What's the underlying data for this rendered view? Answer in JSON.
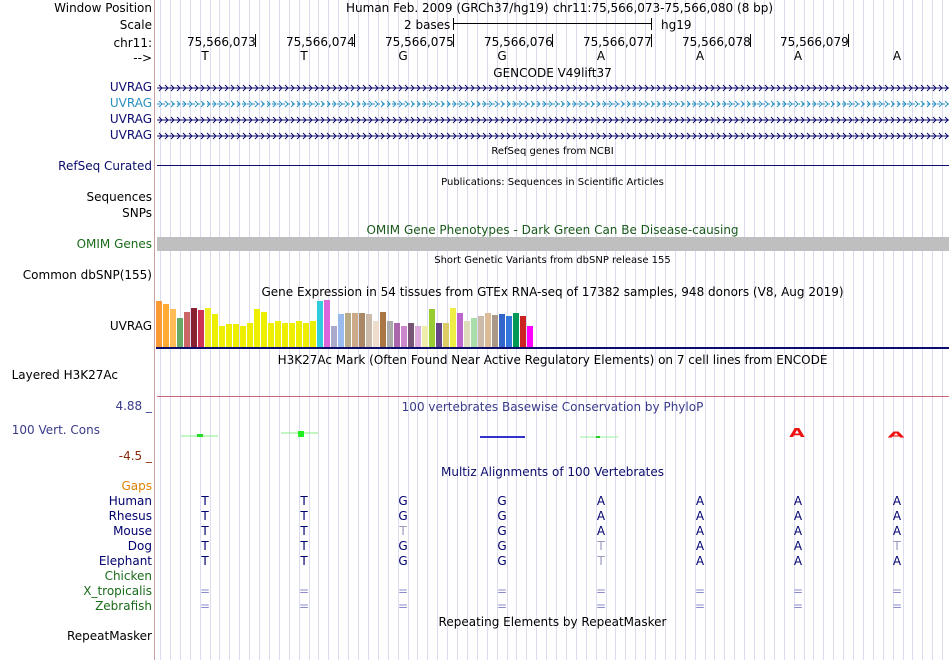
{
  "header": {
    "window_position_label": "Window Position",
    "scale_label": "Scale",
    "chrom_label": "chr11:",
    "strand_label": "-->",
    "assembly": "Human Feb. 2009 (GRCh37/hg19)",
    "position": "chr11:75,566,073-75,566,080 (8 bp)",
    "scale_text": "2 bases",
    "db": "hg19",
    "coordinates": [
      "75,566,073",
      "75,566,074",
      "75,566,075",
      "75,566,076",
      "75,566,077",
      "75,566,078",
      "75,566,079"
    ],
    "bases": [
      "T",
      "T",
      "G",
      "G",
      "A",
      "A",
      "A",
      "A"
    ]
  },
  "tracks": {
    "gencode": {
      "title": "GENCODE V49lift37",
      "genes": [
        {
          "name": "UVRAG",
          "color": "#0b0b6b"
        },
        {
          "name": "UVRAG",
          "color": "#2a8fc0"
        },
        {
          "name": "UVRAG",
          "color": "#0b0b6b"
        },
        {
          "name": "UVRAG",
          "color": "#0b0b6b"
        }
      ]
    },
    "refseq": {
      "title": "RefSeq genes from NCBI",
      "label": "RefSeq Curated"
    },
    "publications": {
      "title": "Publications: Sequences in Scientific Articles",
      "label1": "Sequences",
      "label2": "SNPs"
    },
    "omim": {
      "title": "OMIM Gene Phenotypes - Dark Green Can Be Disease-causing",
      "label": "OMIM Genes"
    },
    "dbsnp": {
      "title": "Short Genetic Variants from dbSNP release 155",
      "label": "Common dbSNP(155)"
    },
    "gtex": {
      "title": "Gene Expression in 54 tissues from GTEx RNA-seq of 17382 samples, 948 donors (V8, Aug 2019)",
      "label": "UVRAG",
      "bars": [
        {
          "v": 0.98,
          "c": "#ff9933"
        },
        {
          "v": 0.92,
          "c": "#ffaa33"
        },
        {
          "v": 0.8,
          "c": "#ffbb55"
        },
        {
          "v": 0.62,
          "c": "#66aa66"
        },
        {
          "v": 0.75,
          "c": "#cc6666"
        },
        {
          "v": 0.82,
          "c": "#882233"
        },
        {
          "v": 0.78,
          "c": "#cc3355"
        },
        {
          "v": 0.82,
          "c": "#eeee22"
        },
        {
          "v": 0.7,
          "c": "#eeee00"
        },
        {
          "v": 0.45,
          "c": "#eeee00"
        },
        {
          "v": 0.48,
          "c": "#eeee00"
        },
        {
          "v": 0.48,
          "c": "#eeee00"
        },
        {
          "v": 0.45,
          "c": "#eeee00"
        },
        {
          "v": 0.52,
          "c": "#eeee00"
        },
        {
          "v": 0.8,
          "c": "#eeee00"
        },
        {
          "v": 0.75,
          "c": "#eeee00"
        },
        {
          "v": 0.52,
          "c": "#eeee00"
        },
        {
          "v": 0.55,
          "c": "#eeee00"
        },
        {
          "v": 0.52,
          "c": "#eeee00"
        },
        {
          "v": 0.52,
          "c": "#eeee00"
        },
        {
          "v": 0.55,
          "c": "#eeee00"
        },
        {
          "v": 0.52,
          "c": "#eeee00"
        },
        {
          "v": 0.55,
          "c": "#eeee00"
        },
        {
          "v": 0.98,
          "c": "#33ccdd"
        },
        {
          "v": 1.0,
          "c": "#dd66dd"
        },
        {
          "v": 0.45,
          "c": "#aaaacc"
        },
        {
          "v": 0.7,
          "c": "#99bbee"
        },
        {
          "v": 0.72,
          "c": "#bbaa88"
        },
        {
          "v": 0.72,
          "c": "#ccaa88"
        },
        {
          "v": 0.72,
          "c": "#aa8866"
        },
        {
          "v": 0.7,
          "c": "#ccbbaa"
        },
        {
          "v": 0.55,
          "c": "#eeddcc"
        },
        {
          "v": 0.75,
          "c": "#aa7744"
        },
        {
          "v": 0.55,
          "c": "#aaaaaa"
        },
        {
          "v": 0.5,
          "c": "#aa66aa"
        },
        {
          "v": 0.45,
          "c": "#cc88cc"
        },
        {
          "v": 0.5,
          "c": "#775577"
        },
        {
          "v": 0.45,
          "c": "#ddaadd"
        },
        {
          "v": 0.45,
          "c": "#eeeeaa"
        },
        {
          "v": 0.8,
          "c": "#99cc33"
        },
        {
          "v": 0.5,
          "c": "#664488"
        },
        {
          "v": 0.5,
          "c": "#ddcc66"
        },
        {
          "v": 0.82,
          "c": "#eeee44"
        },
        {
          "v": 0.72,
          "c": "#bb66cc"
        },
        {
          "v": 0.55,
          "c": "#ddddbb"
        },
        {
          "v": 0.62,
          "c": "#aaddaa"
        },
        {
          "v": 0.65,
          "c": "#ccbbaa"
        },
        {
          "v": 0.72,
          "c": "#ddbb99"
        },
        {
          "v": 0.68,
          "c": "#aa9988"
        },
        {
          "v": 0.7,
          "c": "#3366cc"
        },
        {
          "v": 0.65,
          "c": "#3377dd"
        },
        {
          "v": 0.72,
          "c": "#009955"
        },
        {
          "v": 0.65,
          "c": "#cc2222"
        },
        {
          "v": 0.45,
          "c": "#ff00ff"
        }
      ]
    },
    "h3k27ac": {
      "title": "H3K27Ac Mark (Often Found Near Active Regulatory Elements) on 7 cell lines from ENCODE",
      "label": "Layered H3K27Ac"
    },
    "phylop": {
      "title": "100 vertebrates Basewise Conservation by PhyloP",
      "label": "100 Vert. Cons",
      "max": "4.88 _",
      "min": "-4.5 _"
    },
    "multiz": {
      "title": "Multiz Alignments of 100 Vertebrates",
      "gaps_label": "Gaps",
      "species": [
        {
          "name": "Human",
          "color": "#00006e",
          "bases": [
            "T",
            "T",
            "G",
            "G",
            "A",
            "A",
            "A",
            "A"
          ]
        },
        {
          "name": "Rhesus",
          "color": "#00006e",
          "bases": [
            "T",
            "T",
            "G",
            "G",
            "A",
            "A",
            "A",
            "A"
          ]
        },
        {
          "name": "Mouse",
          "color": "#00006e",
          "bases": [
            "T",
            "T",
            "T",
            "G",
            "A",
            "A",
            "A",
            "A"
          ]
        },
        {
          "name": "Dog",
          "color": "#00006e",
          "bases": [
            "T",
            "T",
            "G",
            "G",
            "T",
            "A",
            "A",
            "T"
          ]
        },
        {
          "name": "Elephant",
          "color": "#00006e",
          "bases": [
            "T",
            "T",
            "G",
            "G",
            "T",
            "A",
            "A",
            "A"
          ]
        },
        {
          "name": "Chicken",
          "color": "#1a6b1a",
          "bases": [
            "",
            "",
            "",
            "",
            "",
            "",
            "",
            ""
          ]
        },
        {
          "name": "X_tropicalis",
          "color": "#1a6b1a",
          "bases": [
            "=",
            "=",
            "=",
            "=",
            "=",
            "=",
            "=",
            "="
          ]
        },
        {
          "name": "Zebrafish",
          "color": "#1a6b1a",
          "bases": [
            "=",
            "=",
            "=",
            "=",
            "=",
            "=",
            "=",
            "="
          ]
        }
      ]
    },
    "repeatmasker": {
      "title": "Repeating Elements by RepeatMasker",
      "label": "RepeatMasker"
    }
  }
}
